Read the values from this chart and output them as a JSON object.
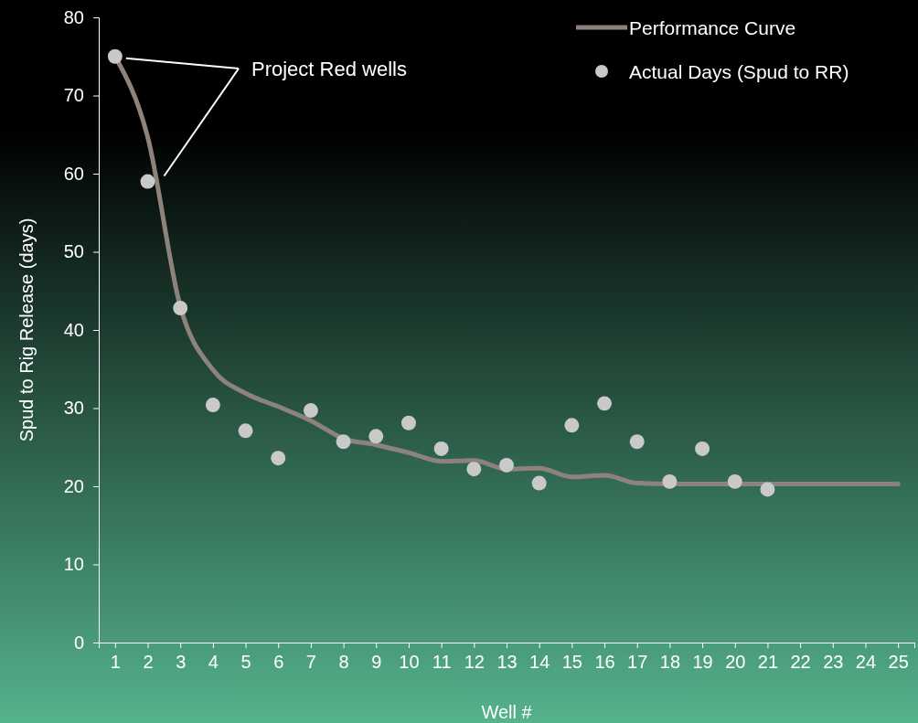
{
  "chart_data": {
    "type": "scatter",
    "xlabel": "Well #",
    "ylabel": "Spud to Rig Release (days)",
    "xlim": [
      0.5,
      25.5
    ],
    "xticks": [
      1,
      2,
      3,
      4,
      5,
      6,
      7,
      8,
      9,
      10,
      11,
      12,
      13,
      14,
      15,
      16,
      17,
      18,
      19,
      20,
      21,
      22,
      23,
      24,
      25
    ],
    "ylim": [
      0,
      80
    ],
    "yticks": [
      0,
      10,
      20,
      30,
      40,
      50,
      60,
      70,
      80
    ],
    "grid": false,
    "legend": "top right",
    "annotations": [
      "Project Red wells"
    ],
    "series": [
      {
        "name": "Performance Curve",
        "type": "line",
        "marker": "none",
        "line_style": "solid",
        "color": "#8e827c",
        "x": [
          1,
          2,
          3,
          4,
          5,
          6,
          7,
          8,
          9,
          10,
          11,
          12,
          13,
          14,
          15,
          16,
          17,
          18,
          19,
          20,
          21,
          22,
          23,
          24,
          25
        ],
        "values": [
          75,
          64.7,
          43,
          34.9,
          31.9,
          30.2,
          28.4,
          26.1,
          25.3,
          24.3,
          23.2,
          23.3,
          22.2,
          22.3,
          21.2,
          21.4,
          20.4,
          20.3,
          20.3,
          20.3,
          20.3,
          20.3,
          20.3,
          20.3,
          20.3
        ]
      },
      {
        "name": "Actual Days (Spud to RR)",
        "marker": "circle",
        "color": "#c9c9c9",
        "x": [
          1,
          2,
          3,
          4,
          5,
          6,
          7,
          8,
          9,
          10,
          11,
          12,
          13,
          14,
          15,
          16,
          17,
          18,
          19,
          20,
          21
        ],
        "values": [
          75,
          59,
          42.8,
          30.4,
          27.1,
          23.6,
          29.7,
          25.7,
          26.4,
          28.1,
          24.8,
          22.2,
          22.7,
          20.4,
          27.8,
          30.6,
          25.7,
          20.6,
          24.8,
          20.6,
          19.6
        ]
      }
    ]
  }
}
